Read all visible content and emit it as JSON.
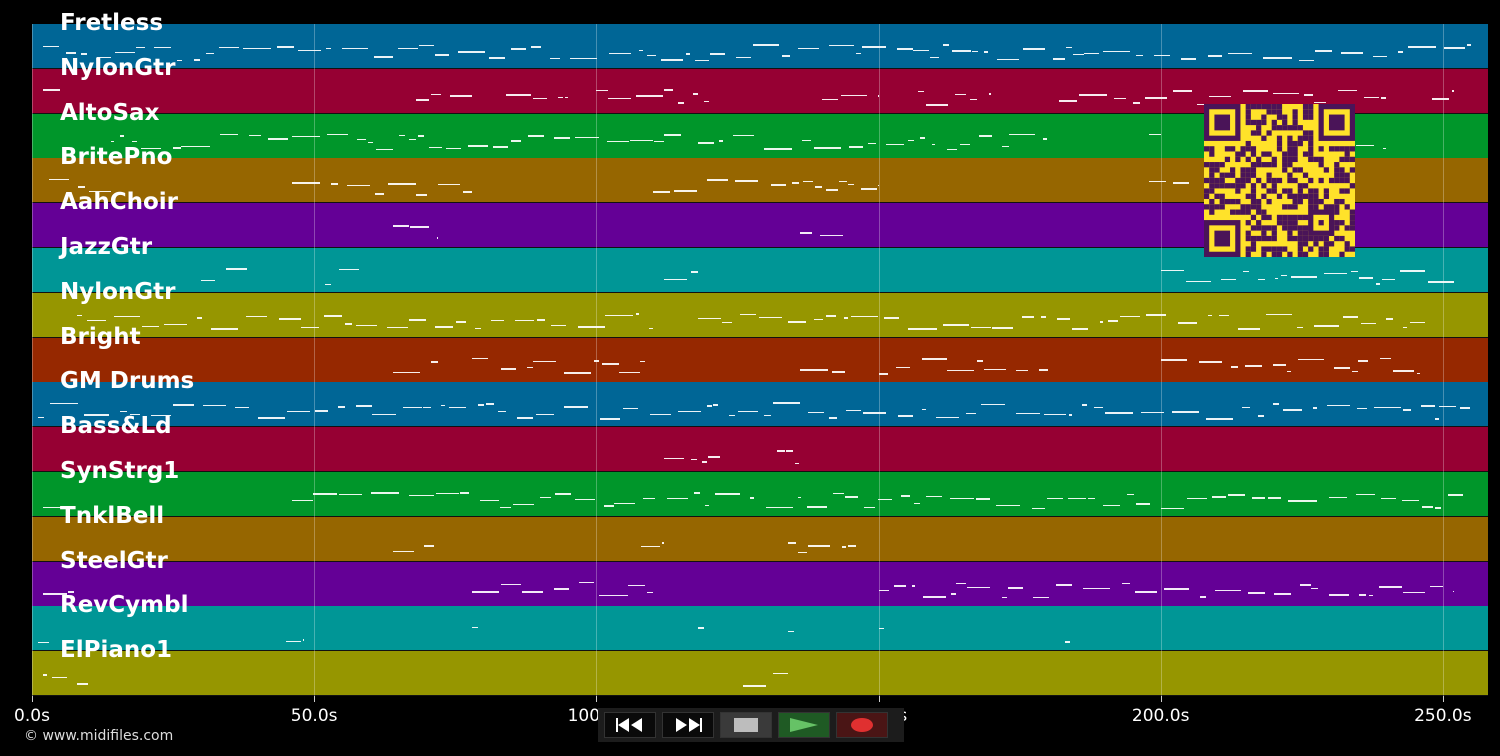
{
  "tracks": [
    {
      "name": "Fretless",
      "color": "#006696"
    },
    {
      "name": "NylonGtr",
      "color": "#960033"
    },
    {
      "name": "AltoSax",
      "color": "#00962a"
    },
    {
      "name": "BritePno",
      "color": "#966600"
    },
    {
      "name": "AahChoir",
      "color": "#640096"
    },
    {
      "name": "JazzGtr",
      "color": "#009696"
    },
    {
      "name": "NylonGtr",
      "color": "#969600"
    },
    {
      "name": "Bright",
      "color": "#962800"
    },
    {
      "name": "GM Drums",
      "color": "#006696"
    },
    {
      "name": "Bass&Ld",
      "color": "#960033"
    },
    {
      "name": "SynStrg1",
      "color": "#00962a"
    },
    {
      "name": "TnklBell",
      "color": "#966600"
    },
    {
      "name": "SteelGtr",
      "color": "#640096"
    },
    {
      "name": "RevCymbl",
      "color": "#009696"
    },
    {
      "name": "ElPiano1",
      "color": "#969600"
    }
  ],
  "timeline": {
    "start_s": 0,
    "end_s": 258,
    "ticks": [
      {
        "value": 0,
        "label": "0.0s"
      },
      {
        "value": 50,
        "label": "50.0s"
      },
      {
        "value": 100,
        "label": "100.0s"
      },
      {
        "value": 150,
        "label": "150.0s"
      },
      {
        "value": 200,
        "label": "200.0s"
      },
      {
        "value": 250,
        "label": "250.0s"
      }
    ]
  },
  "copyright": "© www.midifiles.com",
  "qr_icon": "qr-code-icon",
  "qr_colors": {
    "fg": "#4a1458",
    "bg": "#ffe22a"
  },
  "controls": [
    {
      "name": "rewind-button",
      "icon": "rewind-icon"
    },
    {
      "name": "fast-forward-button",
      "icon": "fast-forward-icon"
    },
    {
      "name": "stop-button",
      "icon": "stop-icon"
    },
    {
      "name": "play-button",
      "icon": "play-icon"
    },
    {
      "name": "record-button",
      "icon": "record-icon"
    }
  ]
}
